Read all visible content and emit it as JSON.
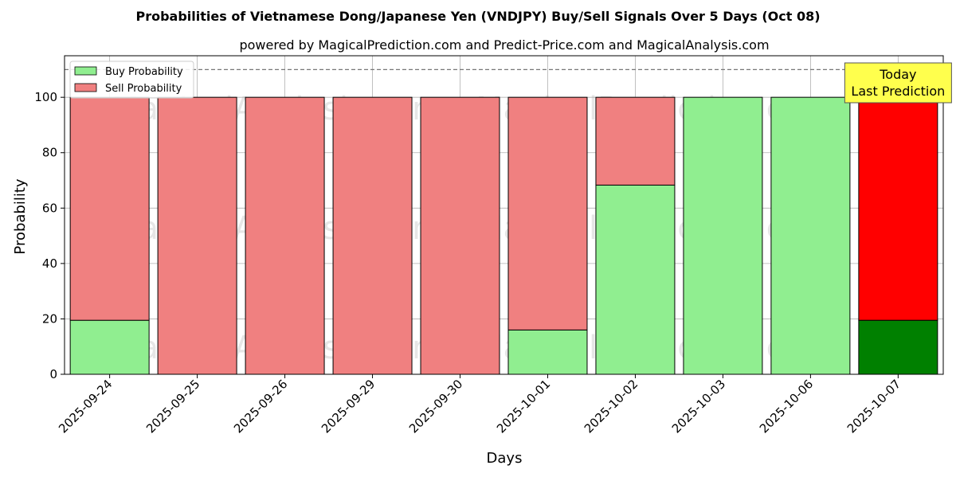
{
  "chart_data": {
    "type": "bar",
    "title": "Probabilities of Vietnamese Dong/Japanese Yen (VNDJPY) Buy/Sell Signals Over 5 Days (Oct 08)",
    "subtitle": "powered by MagicalPrediction.com and Predict-Price.com and MagicalAnalysis.com",
    "xlabel": "Days",
    "ylabel": "Probability",
    "ylim": [
      0,
      115
    ],
    "yticks": [
      0,
      20,
      40,
      60,
      80,
      100
    ],
    "grid": true,
    "stacked": true,
    "legend_position": "top-left",
    "reference_line": 110,
    "categories": [
      "2025-09-24",
      "2025-09-25",
      "2025-09-26",
      "2025-09-29",
      "2025-09-30",
      "2025-10-01",
      "2025-10-02",
      "2025-10-03",
      "2025-10-06",
      "2025-10-07"
    ],
    "series": [
      {
        "name": "Buy Probability",
        "color": "#90ee90",
        "values": [
          19.5,
          0,
          0,
          0,
          0,
          16,
          68.3,
          100,
          100,
          19.5
        ]
      },
      {
        "name": "Sell Probability",
        "color": "#f08080",
        "values": [
          80.5,
          100,
          100,
          100,
          100,
          84,
          31.7,
          0,
          0,
          80.5
        ]
      }
    ],
    "highlight": {
      "index": 9,
      "buy_color": "#008000",
      "sell_color": "#ff0000",
      "label_line1": "Today",
      "label_line2": "Last Prediction",
      "label_bg": "#ffff4d"
    },
    "watermarks": [
      "MagicalAnalysis.com",
      "MagicalPrediction.com"
    ]
  }
}
